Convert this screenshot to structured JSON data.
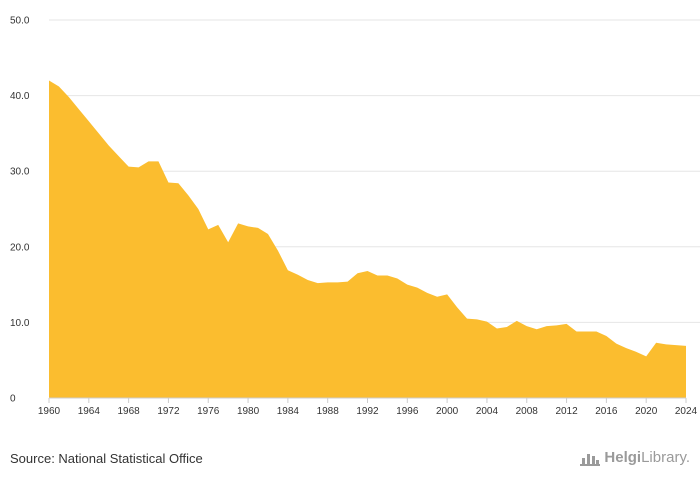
{
  "source_text": "Source: National Statistical Office",
  "logo_text": {
    "bold": "Helgi",
    "rest": "Library."
  },
  "colors": {
    "area": "#fbbd2f",
    "grid": "#e6e6e6",
    "axis": "#cccccc",
    "text": "#333333"
  },
  "chart_data": {
    "type": "area",
    "title": "",
    "xlabel": "",
    "ylabel": "",
    "xlim": [
      1960,
      2024
    ],
    "ylim": [
      0,
      50
    ],
    "y_ticks": [
      "0",
      "10.0",
      "20.0",
      "30.0",
      "40.0",
      "50.0"
    ],
    "y_tick_values": [
      0,
      10,
      20,
      30,
      40,
      50
    ],
    "x_ticks": [
      "1960",
      "1964",
      "1968",
      "1972",
      "1976",
      "1980",
      "1984",
      "1988",
      "1992",
      "1996",
      "2000",
      "2004",
      "2008",
      "2012",
      "2016",
      "2020",
      "2024"
    ],
    "x_tick_values": [
      1960,
      1964,
      1968,
      1972,
      1976,
      1980,
      1984,
      1988,
      1992,
      1996,
      2000,
      2004,
      2008,
      2012,
      2016,
      2020,
      2024
    ],
    "grid": true,
    "legend": "none",
    "x": [
      1960,
      1961,
      1962,
      1963,
      1964,
      1965,
      1966,
      1967,
      1968,
      1969,
      1970,
      1971,
      1972,
      1973,
      1974,
      1975,
      1976,
      1977,
      1978,
      1979,
      1980,
      1981,
      1982,
      1983,
      1984,
      1985,
      1986,
      1987,
      1988,
      1989,
      1990,
      1991,
      1992,
      1993,
      1994,
      1995,
      1996,
      1997,
      1998,
      1999,
      2000,
      2001,
      2002,
      2003,
      2004,
      2005,
      2006,
      2007,
      2008,
      2009,
      2010,
      2011,
      2012,
      2013,
      2014,
      2015,
      2016,
      2017,
      2018,
      2019,
      2020,
      2021,
      2022,
      2023,
      2024
    ],
    "values": [
      42.0,
      41.2,
      39.8,
      38.2,
      36.6,
      35.0,
      33.4,
      32.0,
      30.6,
      30.5,
      31.3,
      31.3,
      28.5,
      28.4,
      26.8,
      25.0,
      22.3,
      22.9,
      20.6,
      23.1,
      22.7,
      22.5,
      21.7,
      19.5,
      16.9,
      16.3,
      15.6,
      15.2,
      15.3,
      15.3,
      15.4,
      16.5,
      16.8,
      16.2,
      16.2,
      15.8,
      15.0,
      14.6,
      13.9,
      13.4,
      13.7,
      12.0,
      10.5,
      10.4,
      10.1,
      9.2,
      9.4,
      10.2,
      9.5,
      9.1,
      9.5,
      9.6,
      9.8,
      8.8,
      8.8,
      8.8,
      8.2,
      7.2,
      6.6,
      6.1,
      5.5,
      7.3,
      7.1,
      7.0,
      6.9
    ]
  }
}
